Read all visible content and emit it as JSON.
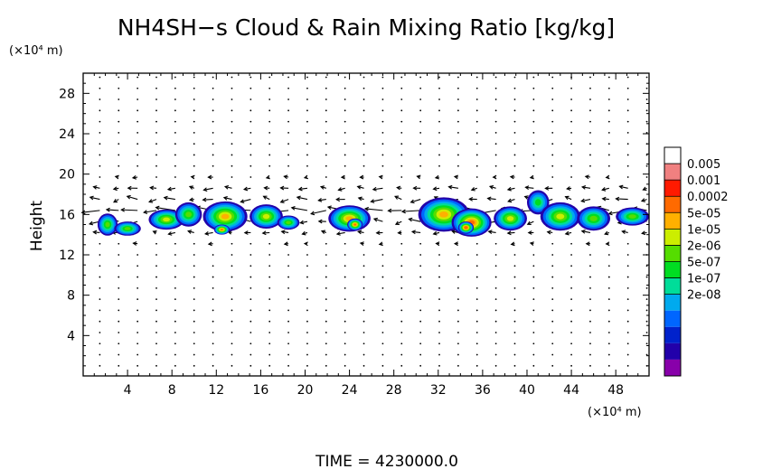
{
  "chart_data": {
    "type": "heatmap",
    "title": "NH4SH−s Cloud & Rain Mixing Ratio [kg/kg]",
    "ylabel": "Height",
    "y_unit": "(×10⁴ m)",
    "x_unit": "(×10⁴ m)",
    "xlim": [
      0,
      51
    ],
    "ylim": [
      0,
      30
    ],
    "x_ticks": [
      "4",
      "8",
      "12",
      "16",
      "20",
      "24",
      "28",
      "32",
      "36",
      "40",
      "44",
      "48"
    ],
    "y_ticks": [
      "4",
      "8",
      "12",
      "16",
      "20",
      "24",
      "28"
    ],
    "colorbar": {
      "labels": [
        "0.005",
        "0.001",
        "0.0002",
        "5e-05",
        "1e-05",
        "2e-06",
        "5e-07",
        "1e-07",
        "2e-08"
      ],
      "colors": [
        "#ffffff",
        "#f08080",
        "#ff1a00",
        "#ff6a00",
        "#ffb000",
        "#ccee00",
        "#55dd00",
        "#00dd22",
        "#00dd99",
        "#00aaee",
        "#0066ff",
        "#0022cc",
        "#2200aa",
        "#8800aa"
      ]
    },
    "cloud_cells": [
      {
        "x": 2.2,
        "y": 15.0,
        "rx": 0.9,
        "ry": 1.1,
        "level": 2
      },
      {
        "x": 4.0,
        "y": 14.6,
        "rx": 1.2,
        "ry": 0.7,
        "level": 2
      },
      {
        "x": 7.5,
        "y": 15.5,
        "rx": 1.6,
        "ry": 1.0,
        "level": 3
      },
      {
        "x": 9.5,
        "y": 16.0,
        "rx": 1.2,
        "ry": 1.2,
        "level": 2
      },
      {
        "x": 12.8,
        "y": 15.8,
        "rx": 2.0,
        "ry": 1.5,
        "level": 4
      },
      {
        "x": 12.5,
        "y": 14.5,
        "rx": 0.7,
        "ry": 0.5,
        "level": 5
      },
      {
        "x": 16.5,
        "y": 15.8,
        "rx": 1.5,
        "ry": 1.2,
        "level": 3
      },
      {
        "x": 18.5,
        "y": 15.2,
        "rx": 1.0,
        "ry": 0.7,
        "level": 2
      },
      {
        "x": 24.0,
        "y": 15.6,
        "rx": 1.9,
        "ry": 1.3,
        "level": 4
      },
      {
        "x": 24.5,
        "y": 15.0,
        "rx": 0.7,
        "ry": 0.6,
        "level": 5
      },
      {
        "x": 32.5,
        "y": 16.0,
        "rx": 2.3,
        "ry": 1.7,
        "level": 4
      },
      {
        "x": 35.0,
        "y": 15.2,
        "rx": 1.8,
        "ry": 1.4,
        "level": 5
      },
      {
        "x": 34.5,
        "y": 14.7,
        "rx": 0.7,
        "ry": 0.6,
        "level": 6
      },
      {
        "x": 38.5,
        "y": 15.6,
        "rx": 1.5,
        "ry": 1.2,
        "level": 3
      },
      {
        "x": 41.0,
        "y": 17.2,
        "rx": 1.0,
        "ry": 1.2,
        "level": 1
      },
      {
        "x": 43.0,
        "y": 15.8,
        "rx": 1.8,
        "ry": 1.4,
        "level": 3
      },
      {
        "x": 46.0,
        "y": 15.6,
        "rx": 1.5,
        "ry": 1.2,
        "level": 2
      },
      {
        "x": 49.5,
        "y": 15.8,
        "rx": 1.5,
        "ry": 0.9,
        "level": 2
      }
    ],
    "wind_field": "horizontal wind vectors, predominantly westward near 14-20 ×10⁴ m height"
  },
  "footer": {
    "time_label": "TIME  =  4230000.0"
  }
}
